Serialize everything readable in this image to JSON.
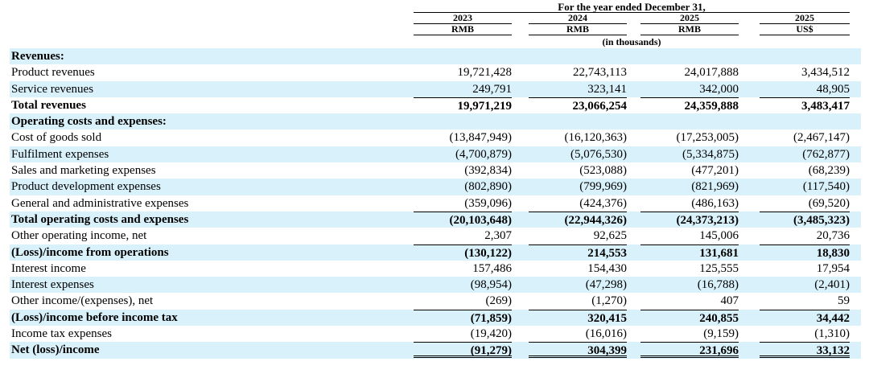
{
  "header": {
    "period": "For the year ended December 31,",
    "unit_note": "(in thousands)",
    "columns": [
      {
        "year": "2023",
        "currency": "RMB"
      },
      {
        "year": "2024",
        "currency": "RMB"
      },
      {
        "year": "2025",
        "currency": "RMB"
      },
      {
        "year": "2025",
        "currency": "US$"
      }
    ]
  },
  "rows": [
    {
      "label": "Revenues:",
      "values": [
        "",
        "",
        "",
        ""
      ]
    },
    {
      "label": "Product revenues",
      "values": [
        "19,721,428",
        "22,743,113",
        "24,017,888",
        "3,434,512"
      ]
    },
    {
      "label": "Service revenues",
      "values": [
        "249,791",
        "323,141",
        "342,000",
        "48,905"
      ]
    },
    {
      "label": "Total revenues",
      "values": [
        "19,971,219",
        "23,066,254",
        "24,359,888",
        "3,483,417"
      ]
    },
    {
      "label": "Operating costs and expenses:",
      "values": [
        "",
        "",
        "",
        ""
      ]
    },
    {
      "label": "Cost of goods sold",
      "values": [
        "(13,847,949)",
        "(16,120,363)",
        "(17,253,005)",
        "(2,467,147)"
      ]
    },
    {
      "label": "Fulfilment expenses",
      "values": [
        "(4,700,879)",
        "(5,076,530)",
        "(5,334,875)",
        "(762,877)"
      ]
    },
    {
      "label": "Sales and marketing expenses",
      "values": [
        "(392,834)",
        "(523,088)",
        "(477,201)",
        "(68,239)"
      ]
    },
    {
      "label": "Product development expenses",
      "values": [
        "(802,890)",
        "(799,969)",
        "(821,969)",
        "(117,540)"
      ]
    },
    {
      "label": "General and administrative expenses",
      "values": [
        "(359,096)",
        "(424,376)",
        "(486,163)",
        "(69,520)"
      ]
    },
    {
      "label": "Total operating costs and expenses",
      "values": [
        "(20,103,648)",
        "(22,944,326)",
        "(24,373,213)",
        "(3,485,323)"
      ]
    },
    {
      "label": "Other operating income, net",
      "values": [
        "2,307",
        "92,625",
        "145,006",
        "20,736"
      ]
    },
    {
      "label": "(Loss)/income from operations",
      "values": [
        "(130,122)",
        "214,553",
        "131,681",
        "18,830"
      ]
    },
    {
      "label": "Interest income",
      "values": [
        "157,486",
        "154,430",
        "125,555",
        "17,954"
      ]
    },
    {
      "label": "Interest expenses",
      "values": [
        "(98,954)",
        "(47,298)",
        "(16,788)",
        "(2,401)"
      ]
    },
    {
      "label": "Other income/(expenses), net",
      "values": [
        "(269)",
        "(1,270)",
        "407",
        "59"
      ]
    },
    {
      "label": "(Loss)/income before income tax",
      "values": [
        "(71,859)",
        "320,415",
        "240,855",
        "34,442"
      ]
    },
    {
      "label": "Income tax expenses",
      "values": [
        "(19,420)",
        "(16,016)",
        "(9,159)",
        "(1,310)"
      ]
    },
    {
      "label": "Net (loss)/income",
      "values": [
        "(91,279)",
        "304,399",
        "231,696",
        "33,132"
      ]
    }
  ]
}
